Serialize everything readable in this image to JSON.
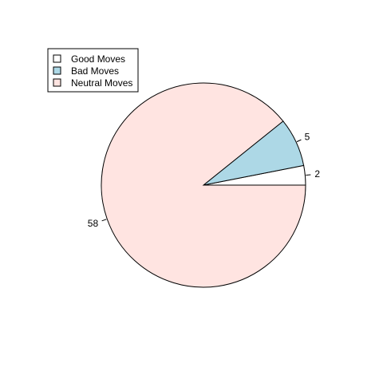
{
  "chart_data": {
    "type": "pie",
    "title": "",
    "slices": [
      {
        "label": "Good Moves",
        "value": 2,
        "color": "#ffffff"
      },
      {
        "label": "Bad Moves",
        "value": 5,
        "color": "#add8e6"
      },
      {
        "label": "Neutral Moves",
        "value": 58,
        "color": "#ffe4e1"
      }
    ],
    "slice_labels": [
      "2",
      "5",
      "58"
    ],
    "start_angle_deg": 0,
    "direction": "counterclockwise",
    "legend": {
      "position": "top-left",
      "entries": [
        "Good Moves",
        "Bad Moves",
        "Neutral Moves"
      ]
    }
  }
}
